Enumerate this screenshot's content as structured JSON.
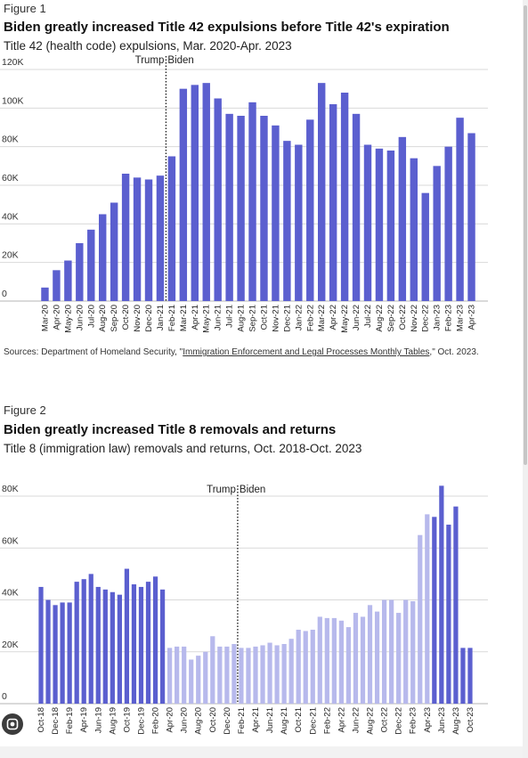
{
  "figures": [
    {
      "figure_label": "Figure 1",
      "title": "Biden greatly increased Title 42 expulsions before Title 42's expiration",
      "subtitle": "Title 42 (health code) expulsions, Mar. 2020-Apr. 2023",
      "divider": {
        "left": "Trump",
        "right": "Biden"
      },
      "source": {
        "prefix": "Sources: Department of Homeland Security, \"",
        "link": "Immigration Enforcement and Legal Processes Monthly Tables",
        "suffix": ",\" Oct. 2023."
      }
    },
    {
      "figure_label": "Figure 2",
      "title": "Biden greatly increased Title 8 removals and returns",
      "subtitle": "Title 8 (immigration law) removals and returns, Oct. 2018-Oct. 2023",
      "divider": {
        "left": "Trump",
        "right": "Biden"
      }
    }
  ],
  "colors": {
    "bar": "#5b5fcf",
    "bar_light": "#b7b9ec",
    "grid": "#d9d9d9",
    "text": "#222222"
  },
  "chart_data": [
    {
      "type": "bar",
      "title": "Biden greatly increased Title 42 expulsions before Title 42's expiration",
      "subtitle": "Title 42 (health code) expulsions, Mar. 2020-Apr. 2023",
      "ylim": [
        0,
        120000
      ],
      "yticks": [
        0,
        20000,
        40000,
        60000,
        80000,
        100000,
        120000
      ],
      "ytick_labels": [
        "0",
        "20K",
        "40K",
        "60K",
        "80K",
        "100K",
        "120K"
      ],
      "grid": true,
      "categories": [
        "Mar-20",
        "Apr-20",
        "May-20",
        "Jun-20",
        "Jul-20",
        "Aug-20",
        "Sep-20",
        "Oct-20",
        "Nov-20",
        "Dec-20",
        "Jan-21",
        "Feb-21",
        "Mar-21",
        "Apr-21",
        "May-21",
        "Jun-21",
        "Jul-21",
        "Aug-21",
        "Sep-21",
        "Oct-21",
        "Nov-21",
        "Dec-21",
        "Jan-22",
        "Feb-22",
        "Mar-22",
        "Apr-22",
        "May-22",
        "Jun-22",
        "Jul-22",
        "Aug-22",
        "Sep-22",
        "Oct-22",
        "Nov-22",
        "Dec-22",
        "Jan-23",
        "Feb-23",
        "Mar-23",
        "Apr-23"
      ],
      "labeled_categories": [
        "Mar-20",
        "Apr-20",
        "May-20",
        "Jun-20",
        "Jul-20",
        "Aug-20",
        "Sep-20",
        "Oct-20",
        "Nov-20",
        "Dec-20",
        "Jan-21",
        "Feb-21",
        "Mar-21",
        "Apr-21",
        "May-21",
        "Jun-21",
        "Jul-21",
        "Aug-21",
        "Sep-21",
        "Oct-21",
        "Nov-21",
        "Dec-21",
        "Jan-22",
        "Feb-22",
        "Mar-22",
        "Apr-22",
        "May-22",
        "Jun-22",
        "Jul-22",
        "Aug-22",
        "Sep-22",
        "Oct-22",
        "Nov-22",
        "Dec-22",
        "Jan-23",
        "Feb-23",
        "Mar-23",
        "Apr-23"
      ],
      "values": [
        7000,
        16000,
        21000,
        30000,
        37000,
        45000,
        51000,
        66000,
        64000,
        63000,
        65000,
        75000,
        110000,
        112000,
        113000,
        105000,
        97000,
        96000,
        103000,
        96000,
        91000,
        83000,
        81000,
        94000,
        113000,
        102000,
        108000,
        97000,
        81000,
        79000,
        78000,
        85000,
        74000,
        56000,
        70000,
        80000,
        95000,
        87000
      ],
      "divider_after": "Jan-21",
      "divider_labels": [
        "Trump",
        "Biden"
      ]
    },
    {
      "type": "bar",
      "title": "Biden greatly increased Title 8 removals and returns",
      "subtitle": "Title 8 (immigration law) removals and returns, Oct. 2018-Oct. 2023",
      "ylim": [
        0,
        80000
      ],
      "yticks": [
        0,
        20000,
        40000,
        60000,
        80000
      ],
      "ytick_labels": [
        "0",
        "20K",
        "40K",
        "60K",
        "80K"
      ],
      "grid": true,
      "categories": [
        "Oct-18",
        "Nov-18",
        "Dec-18",
        "Jan-19",
        "Feb-19",
        "Mar-19",
        "Apr-19",
        "May-19",
        "Jun-19",
        "Jul-19",
        "Aug-19",
        "Sep-19",
        "Oct-19",
        "Nov-19",
        "Dec-19",
        "Jan-20",
        "Feb-20",
        "Mar-20",
        "Apr-20",
        "May-20",
        "Jun-20",
        "Jul-20",
        "Aug-20",
        "Sep-20",
        "Oct-20",
        "Nov-20",
        "Dec-20",
        "Jan-21",
        "Feb-21",
        "Mar-21",
        "Apr-21",
        "May-21",
        "Jun-21",
        "Jul-21",
        "Aug-21",
        "Sep-21",
        "Oct-21",
        "Nov-21",
        "Dec-21",
        "Jan-22",
        "Feb-22",
        "Mar-22",
        "Apr-22",
        "May-22",
        "Jun-22",
        "Jul-22",
        "Aug-22",
        "Sep-22",
        "Oct-22",
        "Nov-22",
        "Dec-22",
        "Jan-23",
        "Feb-23",
        "Mar-23",
        "Apr-23",
        "May-23",
        "Jun-23",
        "Jul-23",
        "Aug-23",
        "Sep-23",
        "Oct-23"
      ],
      "labeled_categories": [
        "Oct-18",
        "Dec-18",
        "Feb-19",
        "Apr-19",
        "Jun-19",
        "Aug-19",
        "Oct-19",
        "Dec-19",
        "Feb-20",
        "Apr-20",
        "Jun-20",
        "Aug-20",
        "Oct-20",
        "Dec-20",
        "Feb-21",
        "Apr-21",
        "Jun-21",
        "Aug-21",
        "Oct-21",
        "Dec-21",
        "Feb-22",
        "Apr-22",
        "Jun-22",
        "Aug-22",
        "Oct-22",
        "Dec-22",
        "Feb-23",
        "Apr-23",
        "Jun-23",
        "Aug-23",
        "Oct-23"
      ],
      "series": [
        {
          "values": [
            45000,
            40000,
            38000,
            39000,
            39000,
            47000,
            48000,
            50000,
            45000,
            44000,
            43000,
            42000,
            52000,
            46000,
            45000,
            47000,
            49000,
            44000,
            21500,
            22000,
            22000,
            17000,
            18500,
            20000,
            26000,
            22000,
            22000,
            23000,
            21500,
            21500,
            22000,
            22500,
            23500,
            22500,
            23000,
            25000,
            28500,
            28000,
            28500,
            33500,
            33000,
            33000,
            32000,
            29500,
            35000,
            33500,
            38000,
            35500,
            40000,
            40000,
            35000,
            40000,
            39500,
            65000,
            73000,
            72000,
            84000,
            69000,
            76000,
            21500,
            21500
          ],
          "tone": "mixed"
        }
      ],
      "light_categories": [
        "Apr-20",
        "May-20",
        "Jun-20",
        "Jul-20",
        "Aug-20",
        "Sep-20",
        "Oct-20",
        "Nov-20",
        "Dec-20",
        "Jan-21",
        "Feb-21",
        "Mar-21",
        "Apr-21",
        "May-21",
        "Jun-21",
        "Jul-21",
        "Aug-21",
        "Sep-21",
        "Oct-21",
        "Nov-21",
        "Dec-21",
        "Jan-22",
        "Feb-22",
        "Mar-22",
        "Apr-22",
        "May-22",
        "Jun-22",
        "Jul-22",
        "Aug-22",
        "Sep-22",
        "Oct-22",
        "Nov-22",
        "Dec-22",
        "Jan-23",
        "Feb-23",
        "Mar-23",
        "Apr-23"
      ],
      "divider_after": "Jan-21",
      "divider_labels": [
        "Trump",
        "Biden"
      ]
    }
  ]
}
